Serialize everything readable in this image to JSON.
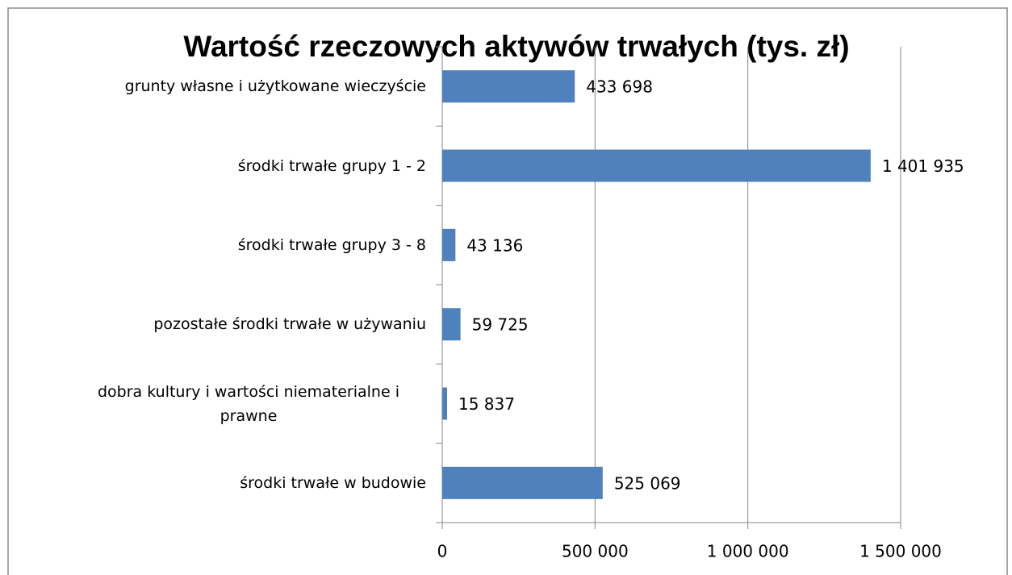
{
  "chart_data": {
    "type": "bar",
    "orientation": "horizontal",
    "title": "Wartość rzeczowych aktywów trwałych (tys. zł)",
    "categories": [
      "grunty własne i użytkowane wieczyście",
      "środki trwałe grupy 1 - 2",
      "środki trwałe grupy 3 - 8",
      "pozostałe środki trwałe w używaniu",
      "dobra kultury i wartości niematerialne i prawne",
      "środki trwałe w budowie"
    ],
    "values": [
      433698,
      1401935,
      43136,
      59725,
      15837,
      525069
    ],
    "value_labels": [
      "433 698",
      "1 401 935",
      "43 136",
      "59 725",
      "15 837",
      "525 069"
    ],
    "color": "#4f81bd",
    "xlim": [
      0,
      1500000
    ],
    "xticks": [
      0,
      {
        "value": 500000,
        "label": "500 000"
      },
      {
        "value": 1000000,
        "label": "1 000 000"
      },
      {
        "value": 1500000,
        "label": "1 500 000"
      }
    ],
    "grid": true
  }
}
